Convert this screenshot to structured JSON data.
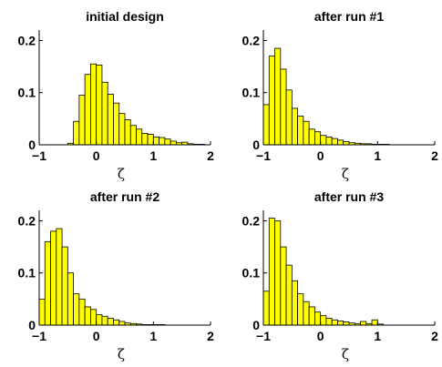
{
  "chart_data": [
    {
      "type": "bar",
      "title": "initial design",
      "xlabel": "ζ",
      "ylabel": "",
      "xlim": [
        -1,
        2
      ],
      "ylim": [
        0,
        0.22
      ],
      "xticks": [
        "−1",
        "0",
        "1",
        "2"
      ],
      "yticks": [
        "0",
        "0.1",
        "0.2"
      ],
      "bin_width": 0.1,
      "x": [
        -0.45,
        -0.35,
        -0.25,
        -0.15,
        -0.05,
        0.05,
        0.15,
        0.25,
        0.35,
        0.45,
        0.55,
        0.65,
        0.75,
        0.85,
        0.95,
        1.05,
        1.15,
        1.25,
        1.35,
        1.45,
        1.55,
        1.65,
        1.75,
        1.85,
        1.95
      ],
      "values": [
        0.003,
        0.045,
        0.095,
        0.135,
        0.155,
        0.153,
        0.12,
        0.097,
        0.08,
        0.06,
        0.048,
        0.037,
        0.03,
        0.022,
        0.02,
        0.015,
        0.014,
        0.011,
        0.007,
        0.004,
        0.005,
        0.002,
        0.001,
        0.001,
        0.0
      ]
    },
    {
      "type": "bar",
      "title": "after run #1",
      "xlabel": "ζ",
      "ylabel": "",
      "xlim": [
        -1,
        2
      ],
      "ylim": [
        0,
        0.22
      ],
      "xticks": [
        "−1",
        "0",
        "1",
        "2"
      ],
      "yticks": [
        "0",
        "0.1",
        "0.2"
      ],
      "bin_width": 0.1,
      "x": [
        -0.95,
        -0.85,
        -0.75,
        -0.65,
        -0.55,
        -0.45,
        -0.35,
        -0.25,
        -0.15,
        -0.05,
        0.05,
        0.15,
        0.25,
        0.35,
        0.45,
        0.55,
        0.65,
        0.75,
        0.85,
        0.95,
        1.05,
        1.15,
        1.25
      ],
      "values": [
        0.077,
        0.17,
        0.185,
        0.145,
        0.105,
        0.07,
        0.055,
        0.045,
        0.03,
        0.025,
        0.018,
        0.015,
        0.012,
        0.009,
        0.006,
        0.004,
        0.003,
        0.002,
        0.002,
        0.001,
        0.001,
        0.001,
        0.0
      ]
    },
    {
      "type": "bar",
      "title": "after run #2",
      "xlabel": "ζ",
      "ylabel": "",
      "xlim": [
        -1,
        2
      ],
      "ylim": [
        0,
        0.22
      ],
      "xticks": [
        "−1",
        "0",
        "1",
        "2"
      ],
      "yticks": [
        "0",
        "0.1",
        "0.2"
      ],
      "bin_width": 0.1,
      "x": [
        -0.95,
        -0.85,
        -0.75,
        -0.65,
        -0.55,
        -0.45,
        -0.35,
        -0.25,
        -0.15,
        -0.05,
        0.05,
        0.15,
        0.25,
        0.35,
        0.45,
        0.55,
        0.65,
        0.75,
        0.85,
        0.95,
        1.05,
        1.15,
        1.25
      ],
      "values": [
        0.05,
        0.16,
        0.18,
        0.185,
        0.15,
        0.1,
        0.06,
        0.05,
        0.035,
        0.03,
        0.02,
        0.017,
        0.013,
        0.01,
        0.007,
        0.004,
        0.003,
        0.002,
        0.001,
        0.001,
        0.001,
        0.001,
        0.0
      ]
    },
    {
      "type": "bar",
      "title": "after run #3",
      "xlabel": "ζ",
      "ylabel": "",
      "xlim": [
        -1,
        2
      ],
      "ylim": [
        0,
        0.22
      ],
      "xticks": [
        "−1",
        "0",
        "1",
        "2"
      ],
      "yticks": [
        "0",
        "0.1",
        "0.2"
      ],
      "bin_width": 0.1,
      "x": [
        -0.95,
        -0.85,
        -0.75,
        -0.65,
        -0.55,
        -0.45,
        -0.35,
        -0.25,
        -0.15,
        -0.05,
        0.05,
        0.15,
        0.25,
        0.35,
        0.45,
        0.55,
        0.65,
        0.75,
        0.85,
        0.95,
        1.05
      ],
      "values": [
        0.065,
        0.205,
        0.2,
        0.15,
        0.115,
        0.085,
        0.06,
        0.045,
        0.035,
        0.025,
        0.018,
        0.013,
        0.01,
        0.008,
        0.006,
        0.004,
        0.003,
        0.007,
        0.003,
        0.01,
        0.002
      ]
    }
  ],
  "style": {
    "bar_fill": "#ffff00",
    "bar_stroke": "#000000",
    "axis_color": "#000000",
    "background": "#ffffff"
  }
}
